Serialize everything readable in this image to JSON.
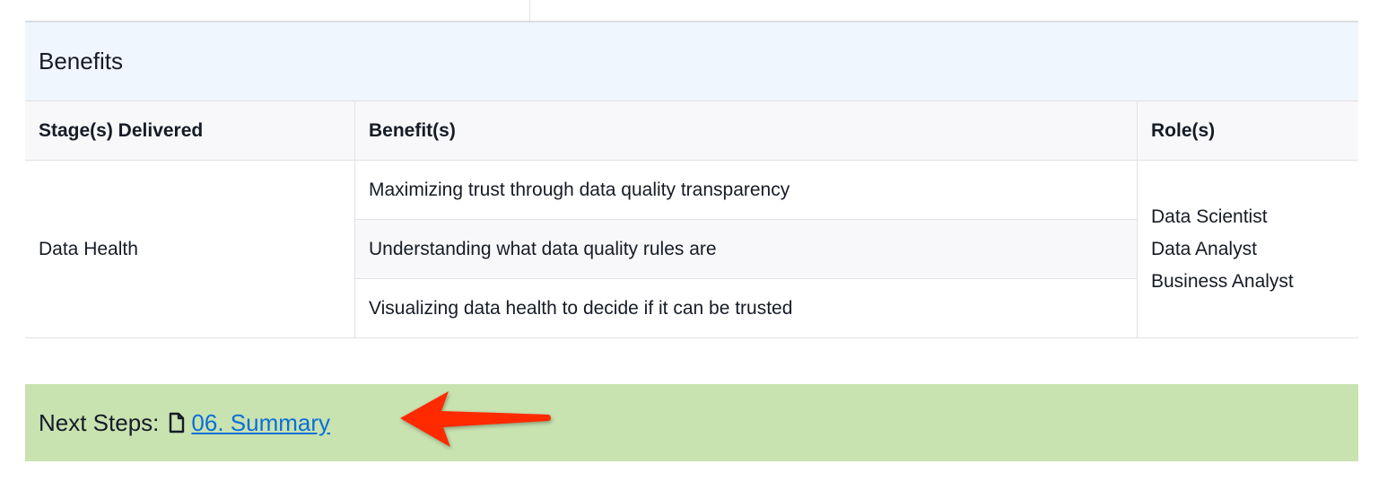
{
  "benefits": {
    "title": "Benefits",
    "columns": [
      "Stage(s) Delivered",
      "Benefit(s)",
      "Role(s)"
    ],
    "stage": "Data Health",
    "items": [
      "Maximizing trust through data quality transparency",
      "Understanding what data quality rules are",
      "Visualizing data health to decide if it can be trusted"
    ],
    "roles": [
      "Data Scientist",
      "Data Analyst",
      "Business Analyst"
    ]
  },
  "next_steps": {
    "label": "Next Steps:",
    "link": "06. Summary",
    "icon": "document-icon"
  },
  "colors": {
    "header_band": "#eff6fe",
    "next_band": "#c8e2b0",
    "link": "#0b6fd8",
    "arrow": "#ff2a00"
  }
}
